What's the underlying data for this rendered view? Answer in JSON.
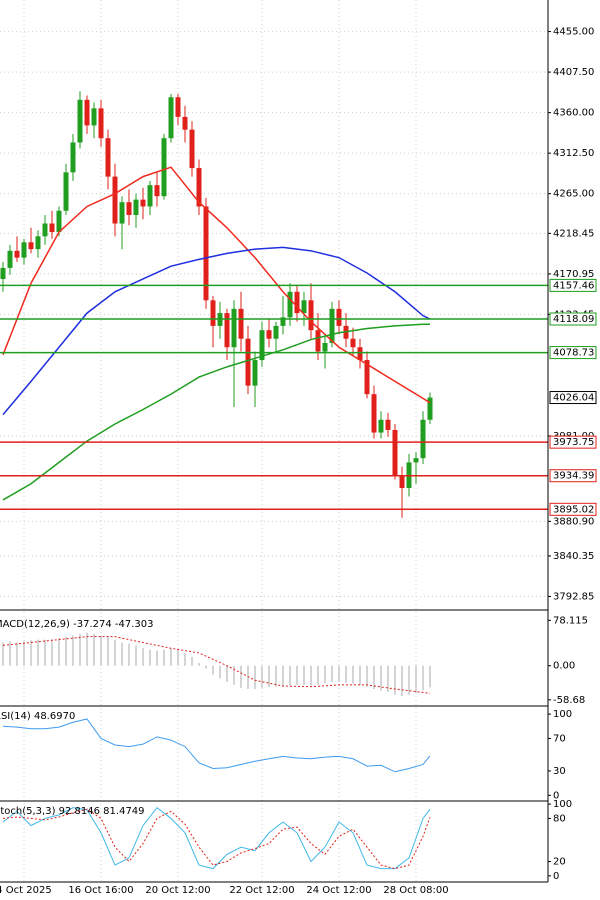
{
  "chart_data": [
    {
      "type": "candlestick",
      "categories": [
        null,
        null,
        null,
        "4 Oct 2025",
        null,
        null,
        null,
        null,
        null,
        null,
        null,
        null,
        null,
        null,
        "16 Oct 16:00",
        null,
        null,
        null,
        null,
        null,
        null,
        null,
        null,
        null,
        null,
        "20 Oct 12:00",
        null,
        null,
        null,
        null,
        null,
        null,
        null,
        null,
        null,
        null,
        null,
        "22 Oct 12:00",
        null,
        null,
        null,
        null,
        null,
        null,
        null,
        null,
        null,
        null,
        "24 Oct 12:00",
        null,
        null,
        null,
        null,
        null,
        null,
        null,
        null,
        null,
        null,
        "28 Oct 08:00",
        null,
        null
      ],
      "open": [
        4165,
        4178,
        4198,
        4190,
        4208,
        4200,
        4215,
        4230,
        4220,
        4245,
        4290,
        4325,
        4375,
        4345,
        4365,
        4330,
        4285,
        4230,
        4255,
        4240,
        4258,
        4250,
        4275,
        4262,
        4330,
        4378,
        4355,
        4340,
        4295,
        4250,
        4140,
        4110,
        4125,
        4085,
        4130,
        4095,
        4040,
        4070,
        4105,
        4095,
        4110,
        4120,
        4150,
        4125,
        4140,
        4105,
        4080,
        4090,
        4130,
        4110,
        4095,
        4085,
        4070,
        4030,
        3985,
        4000,
        3988,
        3935,
        3920,
        3950,
        3955,
        4000
      ],
      "high": [
        4185,
        4205,
        4215,
        4212,
        4225,
        4222,
        4240,
        4245,
        4250,
        4300,
        4335,
        4385,
        4380,
        4372,
        4375,
        4340,
        4300,
        4262,
        4270,
        4265,
        4272,
        4280,
        4290,
        4335,
        4382,
        4382,
        4368,
        4350,
        4305,
        4260,
        4145,
        4138,
        4130,
        4140,
        4150,
        4110,
        4080,
        4115,
        4118,
        4115,
        4145,
        4160,
        4158,
        4150,
        4160,
        4125,
        4100,
        4138,
        4140,
        4125,
        4108,
        4095,
        4080,
        4040,
        4010,
        4008,
        3995,
        3945,
        3960,
        3962,
        4010,
        4032
      ],
      "low": [
        4150,
        4170,
        4185,
        4182,
        4195,
        4190,
        4205,
        4212,
        4215,
        4240,
        4280,
        4318,
        4335,
        4330,
        4320,
        4270,
        4215,
        4200,
        4228,
        4225,
        4235,
        4240,
        4250,
        4258,
        4325,
        4345,
        4325,
        4285,
        4240,
        4130,
        4085,
        4095,
        4070,
        4015,
        4080,
        4030,
        4015,
        4062,
        4085,
        4080,
        4100,
        4110,
        4115,
        4110,
        4095,
        4070,
        4060,
        4085,
        4100,
        4085,
        4075,
        4060,
        4025,
        3978,
        3978,
        3980,
        3930,
        3885,
        3910,
        3925,
        3948,
        3995
      ],
      "close": [
        4178,
        4198,
        4190,
        4208,
        4200,
        4215,
        4230,
        4220,
        4245,
        4290,
        4325,
        4375,
        4345,
        4365,
        4330,
        4285,
        4230,
        4255,
        4240,
        4258,
        4250,
        4275,
        4262,
        4330,
        4378,
        4355,
        4340,
        4295,
        4250,
        4140,
        4110,
        4125,
        4085,
        4130,
        4095,
        4040,
        4070,
        4105,
        4095,
        4110,
        4120,
        4150,
        4125,
        4140,
        4105,
        4080,
        4090,
        4130,
        4110,
        4095,
        4085,
        4070,
        4030,
        3985,
        4000,
        3988,
        3935,
        3920,
        3950,
        3955,
        4000,
        4026.04
      ],
      "up_color": "#1f9e1f",
      "down_color": "#e0201b",
      "lines": [
        {
          "color": "#f02a1e",
          "x": [
            0,
            4,
            8,
            12,
            16,
            20,
            24,
            28,
            32,
            36,
            40,
            44,
            48,
            52,
            56,
            60,
            61
          ],
          "values": [
            4076,
            4160,
            4220,
            4250,
            4265,
            4285,
            4296,
            4255,
            4225,
            4190,
            4150,
            4115,
            4085,
            4065,
            4045,
            4025,
            4020
          ]
        },
        {
          "color": "#1f2fe0",
          "x": [
            0,
            4,
            8,
            12,
            16,
            20,
            24,
            28,
            32,
            36,
            40,
            44,
            48,
            52,
            56,
            60,
            61
          ],
          "values": [
            4006,
            4045,
            4085,
            4125,
            4150,
            4165,
            4180,
            4188,
            4195,
            4200,
            4202,
            4198,
            4190,
            4172,
            4150,
            4122,
            4118
          ]
        },
        {
          "color": "#1f9e1f",
          "x": [
            0,
            4,
            8,
            12,
            16,
            20,
            24,
            28,
            32,
            36,
            40,
            44,
            48,
            52,
            56,
            60,
            61
          ],
          "values": [
            3906,
            3925,
            3950,
            3975,
            3995,
            4012,
            4030,
            4050,
            4062,
            4072,
            4082,
            4094,
            4102,
            4107,
            4110,
            4112,
            4112
          ]
        }
      ],
      "levels": [
        {
          "value": 4157.46,
          "color": "#1f9e1f"
        },
        {
          "value": 4118.09,
          "color": "#1f9e1f"
        },
        {
          "value": 4078.73,
          "color": "#1f9e1f"
        },
        {
          "value": 3973.75,
          "color": "#e0201b"
        },
        {
          "value": 3934.39,
          "color": "#e0201b"
        },
        {
          "value": 3895.02,
          "color": "#e0201b"
        }
      ],
      "last_price": 4026.04,
      "ylim": [
        3777,
        4492
      ],
      "yticks": [
        {
          "value": 4455,
          "label": "4455.00"
        },
        {
          "value": 4407.5,
          "label": "4407.50"
        },
        {
          "value": 4360,
          "label": "4360.00"
        },
        {
          "value": 4312.5,
          "label": "4312.50"
        },
        {
          "value": 4265,
          "label": "4265.00"
        },
        {
          "value": 4218.45,
          "label": "4218.45"
        },
        {
          "value": 4170.95,
          "label": "4170.95"
        },
        {
          "value": 4123.45,
          "label": "4123.45"
        },
        {
          "value": 3981,
          "label": "3981.00"
        },
        {
          "value": 3880.9,
          "label": "3880.90"
        },
        {
          "value": 3840.35,
          "label": "3840.35"
        },
        {
          "value": 3792.85,
          "label": "3792.85"
        }
      ],
      "grid": true
    },
    {
      "type": "macd",
      "title": "MACD(12,26,9) -37.274 -47.303",
      "histogram": [
        40,
        42,
        40,
        42,
        44,
        45,
        45,
        46,
        48,
        50,
        52,
        55,
        57,
        55,
        52,
        50,
        45,
        40,
        38,
        35,
        30,
        28,
        26,
        28,
        30,
        28,
        22,
        15,
        5,
        -5,
        -15,
        -22,
        -28,
        -33,
        -38,
        -40,
        -40,
        -38,
        -37,
        -36,
        -35,
        -34,
        -33,
        -33,
        -34,
        -33,
        -30,
        -28,
        -28,
        -29,
        -31,
        -33,
        -36,
        -40,
        -43,
        -45,
        -50,
        -52,
        -50,
        -47,
        -42,
        -37.274
      ],
      "histogram_color": "#a8a8a8",
      "signal": {
        "color": "#e0201b",
        "x": [
          0,
          4,
          8,
          12,
          16,
          20,
          24,
          28,
          32,
          36,
          40,
          44,
          48,
          52,
          56,
          60,
          61
        ],
        "values": [
          35,
          40,
          45,
          50,
          50,
          40,
          30,
          22,
          0,
          -25,
          -35,
          -36,
          -33,
          -33,
          -40,
          -46,
          -47.303
        ]
      },
      "ylim": [
        -69.3,
        95.9
      ],
      "yticks": [
        78.115,
        {
          "value": 0,
          "label": "0.00"
        },
        -58.68
      ]
    },
    {
      "type": "rsi",
      "title": "RSI(14) 48.6970",
      "lines": [
        {
          "color": "#3f9bf0",
          "x": [
            0,
            2,
            4,
            6,
            8,
            10,
            12,
            14,
            16,
            18,
            20,
            22,
            24,
            26,
            28,
            30,
            32,
            34,
            36,
            38,
            40,
            42,
            44,
            46,
            48,
            50,
            52,
            54,
            56,
            58,
            60,
            61
          ],
          "values": [
            85,
            84,
            82,
            82,
            84,
            90,
            94,
            70,
            62,
            60,
            63,
            72,
            68,
            60,
            40,
            33,
            34,
            38,
            42,
            45,
            48,
            46,
            45,
            47,
            48,
            45,
            36,
            37,
            29,
            33,
            38,
            48.697
          ]
        }
      ],
      "ylim": [
        -7,
        110
      ],
      "yticks": [
        100,
        70,
        30,
        0
      ]
    },
    {
      "type": "stochastic",
      "title": "Stoch(5,3,3) 92.8146 81.4749",
      "lines": [
        {
          "color": "#3fb8e8",
          "x": [
            0,
            2,
            4,
            6,
            8,
            10,
            12,
            14,
            16,
            18,
            20,
            22,
            24,
            26,
            28,
            30,
            32,
            34,
            36,
            38,
            40,
            42,
            44,
            46,
            48,
            50,
            52,
            54,
            56,
            58,
            60,
            61
          ],
          "values": [
            75,
            90,
            70,
            80,
            85,
            95,
            92,
            60,
            15,
            25,
            70,
            95,
            80,
            60,
            15,
            10,
            30,
            40,
            35,
            60,
            75,
            60,
            20,
            40,
            75,
            60,
            15,
            10,
            10,
            25,
            80,
            92.8146
          ]
        },
        {
          "color": "#e0201b",
          "dashed": true,
          "x": [
            0,
            2,
            4,
            6,
            8,
            10,
            12,
            14,
            16,
            18,
            20,
            22,
            24,
            26,
            28,
            30,
            32,
            34,
            36,
            38,
            40,
            42,
            44,
            46,
            48,
            50,
            52,
            54,
            56,
            58,
            60,
            61
          ],
          "values": [
            80,
            82,
            80,
            78,
            82,
            88,
            93,
            80,
            40,
            20,
            45,
            80,
            90,
            72,
            40,
            15,
            20,
            32,
            38,
            45,
            65,
            68,
            45,
            30,
            55,
            65,
            40,
            15,
            10,
            15,
            55,
            81.4749
          ]
        }
      ],
      "ylim": [
        -8.6,
        104.3
      ],
      "yticks": [
        100,
        80,
        20,
        0
      ]
    }
  ]
}
